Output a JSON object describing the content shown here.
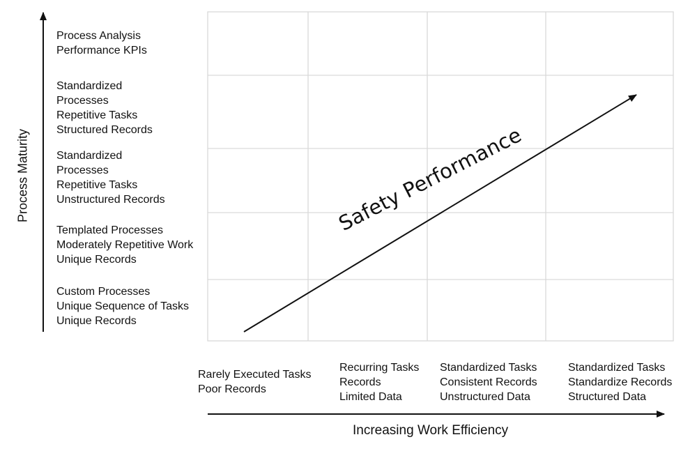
{
  "y_axis": {
    "title": "Process Maturity",
    "levels": [
      "Process Analysis\nPerformance KPIs",
      "Standardized\nProcesses\nRepetitive Tasks\nStructured Records",
      "Standardized\nProcesses\nRepetitive Tasks\nUnstructured Records",
      "Templated Processes\nModerately Repetitive Work\nUnique Records",
      "Custom Processes\nUnique Sequence of Tasks\nUnique Records"
    ]
  },
  "x_axis": {
    "title": "Increasing Work Efficiency",
    "levels": [
      "Rarely Executed Tasks\nPoor Records",
      "Recurring Tasks\nRecords\nLimited Data",
      "Standardized Tasks\nConsistent Records\nUnstructured Data",
      "Standardized Tasks\nStandardize Records\nStructured Data"
    ]
  },
  "diagonal_label": "Safety Performance",
  "colors": {
    "grid": "#d9d9d9",
    "ink": "#111111"
  }
}
